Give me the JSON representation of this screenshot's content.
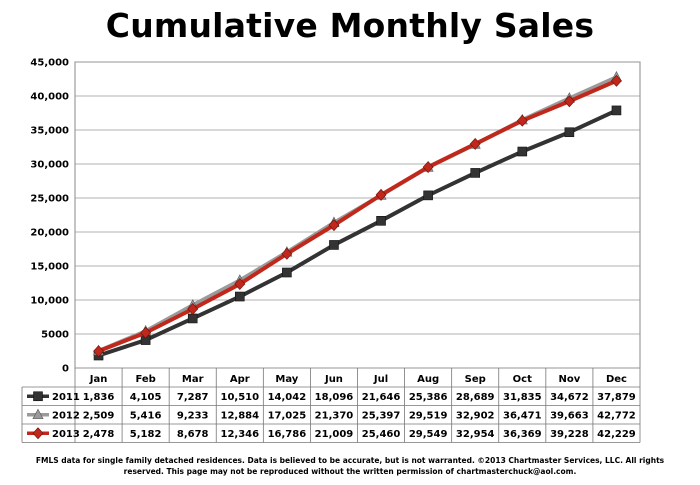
{
  "chart_data": {
    "type": "line",
    "title": "Cumulative Monthly Sales",
    "categories": [
      "Jan",
      "Feb",
      "Mar",
      "Apr",
      "May",
      "Jun",
      "Jul",
      "Aug",
      "Sep",
      "Oct",
      "Nov",
      "Dec"
    ],
    "ylim": [
      0,
      45000
    ],
    "yticks": [
      0,
      5000,
      10000,
      15000,
      20000,
      25000,
      30000,
      35000,
      40000,
      45000
    ],
    "ytick_labels": [
      "0",
      "5000",
      "10,000",
      "15,000",
      "20,000",
      "25,000",
      "30,000",
      "35,000",
      "40,000",
      "45,000"
    ],
    "grid": true,
    "legend_placement": "data table below chart",
    "series": [
      {
        "name": "2011",
        "color": "#333333",
        "marker": "square",
        "values": [
          1836,
          4105,
          7287,
          10510,
          14042,
          18096,
          21646,
          25386,
          28689,
          31835,
          34672,
          37879
        ],
        "labels": [
          "1,836",
          "4,105",
          "7,287",
          "10,510",
          "14,042",
          "18,096",
          "21,646",
          "25,386",
          "28,689",
          "31,835",
          "34,672",
          "37,879"
        ]
      },
      {
        "name": "2012",
        "color": "#9a9a9a",
        "marker": "triangle",
        "values": [
          2509,
          5416,
          9233,
          12884,
          17025,
          21370,
          25397,
          29519,
          32902,
          36471,
          39663,
          42772
        ],
        "labels": [
          "2,509",
          "5,416",
          "9,233",
          "12,884",
          "17,025",
          "21,370",
          "25,397",
          "29,519",
          "32,902",
          "36,471",
          "39,663",
          "42,772"
        ]
      },
      {
        "name": "2013",
        "color": "#c0281c",
        "marker": "diamond",
        "values": [
          2478,
          5182,
          8678,
          12346,
          16786,
          21009,
          25460,
          29549,
          32954,
          36369,
          39228,
          42229
        ],
        "labels": [
          "2,478",
          "5,182",
          "8,678",
          "12,346",
          "16,786",
          "21,009",
          "25,460",
          "29,549",
          "32,954",
          "36,369",
          "39,228",
          "42,229"
        ]
      }
    ]
  },
  "footer": "FMLS data for single family detached residences.  Data is believed to be accurate, but is not warranted.  ©2013  Chartmaster Services, LLC.  All rights reserved. This page may not be reproduced without the written permission of chartmasterchuck@aol.com."
}
